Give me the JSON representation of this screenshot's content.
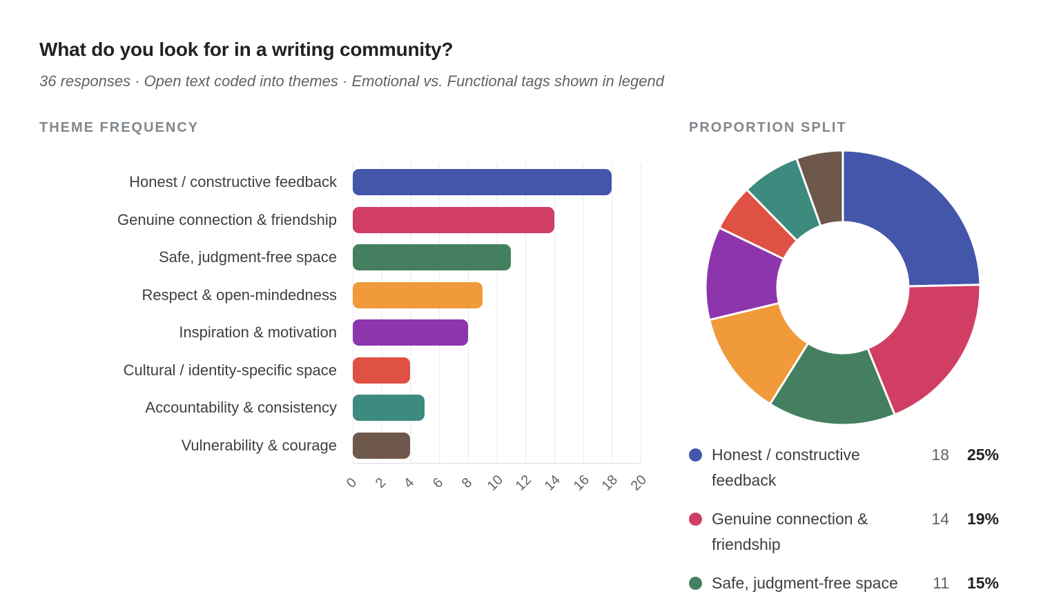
{
  "header": {
    "title": "What do you look for in a writing community?",
    "subtitle": "36 responses · Open text coded into themes · Emotional vs. Functional tags shown in legend"
  },
  "sections": {
    "bar_title": "THEME FREQUENCY",
    "donut_title": "PROPORTION SPLIT"
  },
  "palette": {
    "blue": "#4356AA",
    "crimson": "#D13E63",
    "green": "#44805F",
    "orange": "#F09A3B",
    "purple": "#8C35AD",
    "red": "#DF5142",
    "teal": "#3D8A7F",
    "brown": "#6E574B",
    "grid_line": "#e8eaed",
    "axis_line": "#d8dbde",
    "title_text": "#202124",
    "muted_text": "#5f6368",
    "section_text": "#81878c",
    "label_text": "#3c4043"
  },
  "chart_data": [
    {
      "type": "bar",
      "title": "THEME FREQUENCY",
      "orientation": "horizontal",
      "categories": [
        "Honest / constructive feedback",
        "Genuine connection & friendship",
        "Safe, judgment-free space",
        "Respect & open-mindedness",
        "Inspiration & motivation",
        "Cultural / identity-specific space",
        "Accountability & consistency",
        "Vulnerability & courage"
      ],
      "values": [
        18,
        14,
        11,
        9,
        8,
        4,
        5,
        4
      ],
      "colors": [
        "#4356AA",
        "#D13E63",
        "#44805F",
        "#F09A3B",
        "#8C35AD",
        "#DF5142",
        "#3D8A7F",
        "#6E574B"
      ],
      "xlabel": "",
      "ylabel": "",
      "xlim": [
        0,
        20
      ],
      "xticks": [
        0,
        2,
        4,
        6,
        8,
        10,
        12,
        14,
        16,
        18,
        20
      ],
      "grid": true,
      "tick_rotation_deg": 45
    },
    {
      "type": "pie",
      "title": "PROPORTION SPLIT",
      "donut": true,
      "start_angle_deg": 0,
      "direction": "clockwise",
      "labels": [
        "Honest / constructive feedback",
        "Genuine connection & friendship",
        "Safe, judgment-free space",
        "Respect & open-mindedness",
        "Inspiration & motivation",
        "Cultural / identity-specific space",
        "Accountability & consistency",
        "Vulnerability & courage"
      ],
      "values": [
        18,
        14,
        11,
        9,
        8,
        4,
        5,
        4
      ],
      "colors": [
        "#4356AA",
        "#D13E63",
        "#44805F",
        "#F09A3B",
        "#8C35AD",
        "#DF5142",
        "#3D8A7F",
        "#6E574B"
      ]
    }
  ],
  "legend": {
    "items": [
      {
        "label": "Honest / constructive feedback",
        "count": "18",
        "percent": "25%",
        "color": "#4356AA"
      },
      {
        "label": "Genuine connection & friendship",
        "count": "14",
        "percent": "19%",
        "color": "#D13E63"
      },
      {
        "label": "Safe, judgment-free space",
        "count": "11",
        "percent": "15%",
        "color": "#44805F"
      }
    ]
  }
}
